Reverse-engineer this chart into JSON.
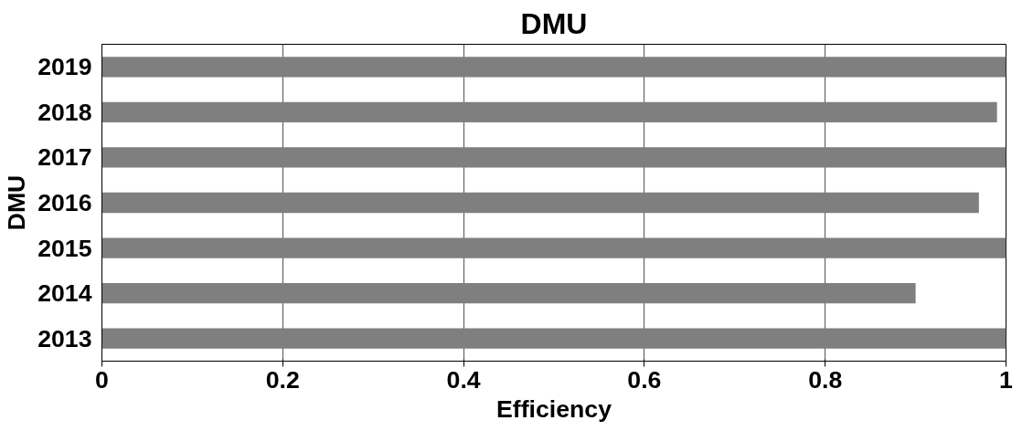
{
  "chart_data": {
    "type": "bar",
    "orientation": "horizontal",
    "title": "DMU",
    "xlabel": "Efficiency",
    "ylabel": "DMU",
    "categories": [
      "2019",
      "2018",
      "2017",
      "2016",
      "2015",
      "2014",
      "2013"
    ],
    "values": [
      1,
      0.99,
      1,
      0.97,
      1,
      0.9,
      1
    ],
    "color": "#7f7f7f",
    "xlim": [
      0,
      1
    ],
    "xticks": [
      0,
      0.2,
      0.4,
      0.6,
      0.8,
      1
    ],
    "grid": "x"
  }
}
